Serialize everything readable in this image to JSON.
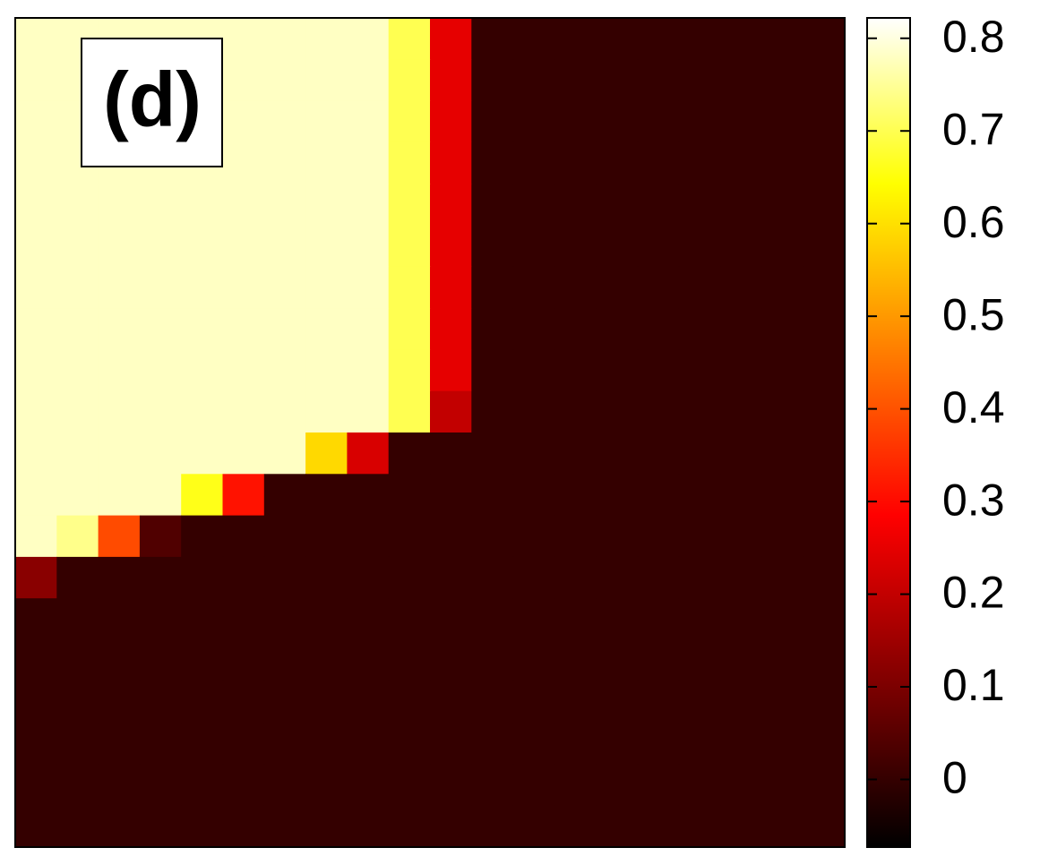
{
  "chart_data": {
    "type": "heatmap",
    "annotation": "(d)",
    "colormap": "hot",
    "clim": [
      -0.073,
      0.822
    ],
    "cticks": [
      0,
      0.1,
      0.2,
      0.3,
      0.4,
      0.5,
      0.6,
      0.7,
      0.8
    ],
    "z": [
      [
        0.78,
        0.78,
        0.78,
        0.78,
        0.78,
        0.78,
        0.78,
        0.78,
        0.78,
        0.7,
        0.25,
        0,
        0,
        0,
        0,
        0,
        0,
        0,
        0,
        0
      ],
      [
        0.78,
        0.78,
        0.78,
        0.78,
        0.78,
        0.78,
        0.78,
        0.78,
        0.78,
        0.7,
        0.25,
        0,
        0,
        0,
        0,
        0,
        0,
        0,
        0,
        0
      ],
      [
        0.78,
        0.78,
        0.78,
        0.78,
        0.78,
        0.78,
        0.78,
        0.78,
        0.78,
        0.7,
        0.25,
        0,
        0,
        0,
        0,
        0,
        0,
        0,
        0,
        0
      ],
      [
        0.78,
        0.78,
        0.78,
        0.78,
        0.78,
        0.78,
        0.78,
        0.78,
        0.78,
        0.7,
        0.25,
        0,
        0,
        0,
        0,
        0,
        0,
        0,
        0,
        0
      ],
      [
        0.78,
        0.78,
        0.78,
        0.78,
        0.78,
        0.78,
        0.78,
        0.78,
        0.78,
        0.7,
        0.25,
        0,
        0,
        0,
        0,
        0,
        0,
        0,
        0,
        0
      ],
      [
        0.78,
        0.78,
        0.78,
        0.78,
        0.78,
        0.78,
        0.78,
        0.78,
        0.78,
        0.7,
        0.25,
        0,
        0,
        0,
        0,
        0,
        0,
        0,
        0,
        0
      ],
      [
        0.78,
        0.78,
        0.78,
        0.78,
        0.78,
        0.78,
        0.78,
        0.78,
        0.78,
        0.7,
        0.25,
        0,
        0,
        0,
        0,
        0,
        0,
        0,
        0,
        0
      ],
      [
        0.78,
        0.78,
        0.78,
        0.78,
        0.78,
        0.78,
        0.78,
        0.78,
        0.78,
        0.7,
        0.25,
        0,
        0,
        0,
        0,
        0,
        0,
        0,
        0,
        0
      ],
      [
        0.78,
        0.78,
        0.78,
        0.78,
        0.78,
        0.78,
        0.78,
        0.78,
        0.78,
        0.7,
        0.25,
        0,
        0,
        0,
        0,
        0,
        0,
        0,
        0,
        0
      ],
      [
        0.78,
        0.78,
        0.78,
        0.78,
        0.78,
        0.78,
        0.78,
        0.78,
        0.78,
        0.7,
        0.2,
        0,
        0,
        0,
        0,
        0,
        0,
        0,
        0,
        0
      ],
      [
        0.78,
        0.78,
        0.78,
        0.78,
        0.78,
        0.78,
        0.78,
        0.59,
        0.23,
        0,
        0,
        0,
        0,
        0,
        0,
        0,
        0,
        0,
        0,
        0
      ],
      [
        0.78,
        0.78,
        0.78,
        0.78,
        0.66,
        0.31,
        0,
        0,
        0,
        0,
        0,
        0,
        0,
        0,
        0,
        0,
        0,
        0,
        0,
        0
      ],
      [
        0.78,
        0.74,
        0.39,
        0.04,
        0,
        0,
        0,
        0,
        0,
        0,
        0,
        0,
        0,
        0,
        0,
        0,
        0,
        0,
        0,
        0
      ],
      [
        0.12,
        0,
        0,
        0,
        0,
        0,
        0,
        0,
        0,
        0,
        0,
        0,
        0,
        0,
        0,
        0,
        0,
        0,
        0,
        0
      ],
      [
        0,
        0,
        0,
        0,
        0,
        0,
        0,
        0,
        0,
        0,
        0,
        0,
        0,
        0,
        0,
        0,
        0,
        0,
        0,
        0
      ],
      [
        0,
        0,
        0,
        0,
        0,
        0,
        0,
        0,
        0,
        0,
        0,
        0,
        0,
        0,
        0,
        0,
        0,
        0,
        0,
        0
      ],
      [
        0,
        0,
        0,
        0,
        0,
        0,
        0,
        0,
        0,
        0,
        0,
        0,
        0,
        0,
        0,
        0,
        0,
        0,
        0,
        0
      ],
      [
        0,
        0,
        0,
        0,
        0,
        0,
        0,
        0,
        0,
        0,
        0,
        0,
        0,
        0,
        0,
        0,
        0,
        0,
        0,
        0
      ],
      [
        0,
        0,
        0,
        0,
        0,
        0,
        0,
        0,
        0,
        0,
        0,
        0,
        0,
        0,
        0,
        0,
        0,
        0,
        0,
        0
      ],
      [
        0,
        0,
        0,
        0,
        0,
        0,
        0,
        0,
        0,
        0,
        0,
        0,
        0,
        0,
        0,
        0,
        0,
        0,
        0,
        0
      ]
    ]
  }
}
